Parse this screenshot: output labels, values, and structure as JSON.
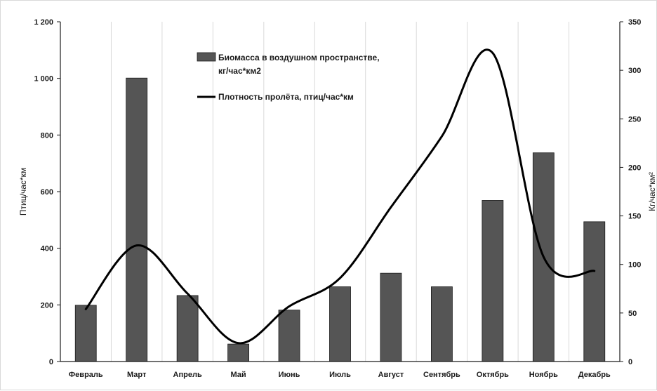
{
  "chart_data": {
    "type": "bar+line",
    "title": "",
    "categories": [
      "Февраль",
      "Март",
      "Апрель",
      "Май",
      "Июнь",
      "Июль",
      "Август",
      "Сентябрь",
      "Октябрь",
      "Ноябрь",
      "Декабрь"
    ],
    "series": [
      {
        "name": "Биомасса в воздушном пространстве, кг/час*км2",
        "name_lines": [
          "Биомасса в воздушном пространстве,",
          "кг/час*км2"
        ],
        "type": "bar",
        "axis": "right",
        "color": "#555555",
        "values": [
          58,
          292,
          68,
          18,
          53,
          77,
          91,
          77,
          166,
          215,
          144
        ]
      },
      {
        "name": "Плотность пролёта, птиц/час*км",
        "type": "line",
        "axis": "left",
        "color": "#000000",
        "values": [
          185,
          410,
          240,
          65,
          195,
          295,
          545,
          795,
          1090,
          370,
          320
        ]
      }
    ],
    "y_left": {
      "label": "Птиц/час*км",
      "min": 0,
      "max": 1200,
      "ticks": [
        0,
        200,
        400,
        600,
        800,
        1000,
        1200
      ],
      "tick_labels": [
        "0",
        "200",
        "400",
        "600",
        "800",
        "1 000",
        "1 200"
      ]
    },
    "y_right": {
      "label": "Кг/час*км²",
      "min": 0,
      "max": 350,
      "ticks": [
        0,
        50,
        100,
        150,
        200,
        250,
        300,
        350
      ],
      "tick_labels": [
        "0",
        "50",
        "100",
        "150",
        "200",
        "250",
        "300",
        "350"
      ]
    },
    "grid": "vertical",
    "legend": "top-center",
    "colors": {
      "bar": "#555555",
      "line": "#000000",
      "grid": "#d9d9d9"
    }
  }
}
